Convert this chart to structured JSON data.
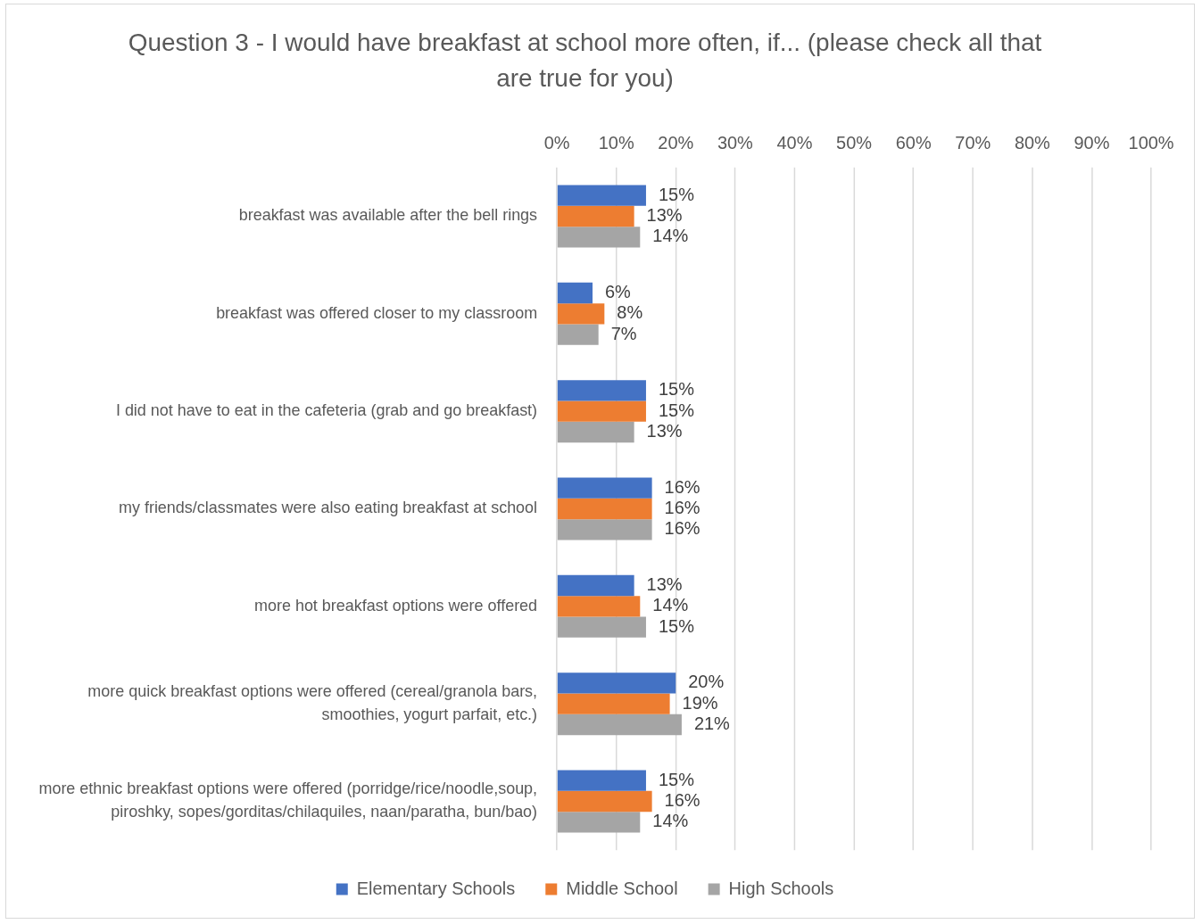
{
  "chart_data": {
    "type": "bar",
    "orientation": "horizontal",
    "title": "Question 3 - I would have breakfast at school more often, if... (please check all that are true for you)",
    "categories": [
      "breakfast was available after the bell rings",
      "breakfast was offered closer to my classroom",
      "I did not have to eat in the cafeteria (grab and go breakfast)",
      "my friends/classmates were also eating breakfast at school",
      "more hot breakfast options were offered",
      "more quick breakfast options were offered (cereal/granola bars, smoothies, yogurt parfait, etc.)",
      "more ethnic breakfast options were offered (porridge/rice/noodle,soup, piroshky, sopes/gorditas/chilaquiles, naan/paratha, bun/bao)"
    ],
    "series": [
      {
        "name": "Elementary Schools",
        "color": "#4472c4",
        "values": [
          15,
          6,
          15,
          16,
          13,
          20,
          15
        ],
        "value_labels": [
          "15%",
          "6%",
          "15%",
          "16%",
          "13%",
          "20%",
          "15%"
        ]
      },
      {
        "name": "Middle School",
        "color": "#ed7d31",
        "values": [
          13,
          8,
          15,
          16,
          14,
          19,
          16
        ],
        "value_labels": [
          "13%",
          "8%",
          "15%",
          "16%",
          "14%",
          "19%",
          "16%"
        ]
      },
      {
        "name": "High Schools",
        "color": "#a5a5a5",
        "values": [
          14,
          7,
          13,
          16,
          15,
          21,
          14
        ],
        "value_labels": [
          "14%",
          "7%",
          "13%",
          "16%",
          "15%",
          "21%",
          "14%"
        ]
      }
    ],
    "xlim": [
      0,
      100
    ],
    "xticks": [
      {
        "value": 0,
        "label": "0%"
      },
      {
        "value": 10,
        "label": "10%"
      },
      {
        "value": 20,
        "label": "20%"
      },
      {
        "value": 30,
        "label": "30%"
      },
      {
        "value": 40,
        "label": "40%"
      },
      {
        "value": 50,
        "label": "50%"
      },
      {
        "value": 60,
        "label": "60%"
      },
      {
        "value": 70,
        "label": "70%"
      },
      {
        "value": 80,
        "label": "80%"
      },
      {
        "value": 90,
        "label": "90%"
      },
      {
        "value": 100,
        "label": "100%"
      }
    ],
    "grid": "x",
    "legend": "bottom"
  }
}
